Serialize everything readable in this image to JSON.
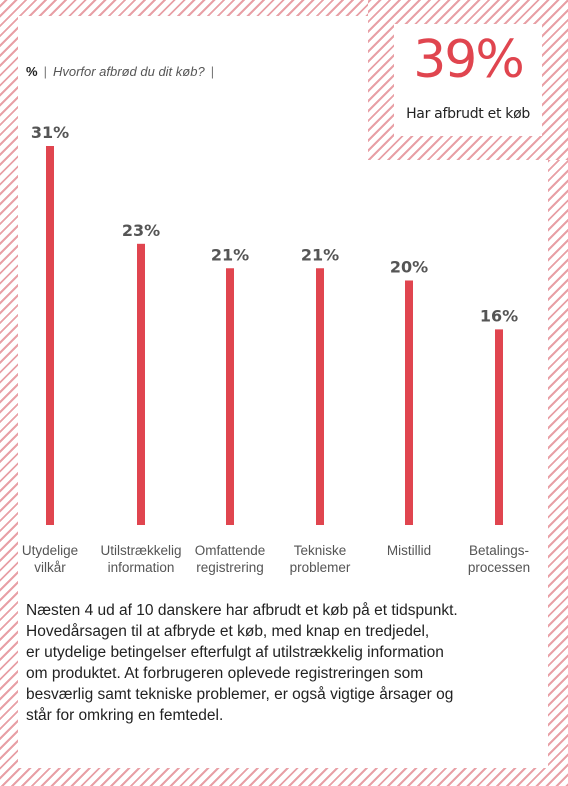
{
  "stat": {
    "value": "39%",
    "label": "Har afbrudt et køb"
  },
  "title": {
    "unit": "%",
    "question": "Hvorfor afbrød du dit køb?",
    "separator": "|"
  },
  "chart_data": {
    "type": "bar",
    "categories": [
      [
        "Utydelige",
        "vilkår"
      ],
      [
        "Utilstrækkelig",
        "information"
      ],
      [
        "Omfattende",
        "registrering"
      ],
      [
        "Tekniske",
        "problemer"
      ],
      [
        "Mistillid"
      ],
      [
        "Betalings-",
        "processen"
      ]
    ],
    "values": [
      31,
      23,
      21,
      21,
      20,
      16
    ],
    "value_labels": [
      "31%",
      "23%",
      "21%",
      "21%",
      "20%",
      "16%"
    ],
    "ylim": [
      0,
      31
    ],
    "colors": {
      "bar": "#e0454f"
    }
  },
  "paragraph": [
    "Næsten 4 ud af 10 danskere har afbrudt et køb på et tidspunkt.",
    "Hovedårsagen til at afbryde et køb, med knap en tredjedel,",
    "er utydelige betingelser efterfulgt af utilstrækkelig information",
    "om produktet. At forbrugeren oplevede registreringen som",
    "besværlig samt tekniske problemer, er også vigtige årsager og",
    "står for omkring en femtedel."
  ]
}
